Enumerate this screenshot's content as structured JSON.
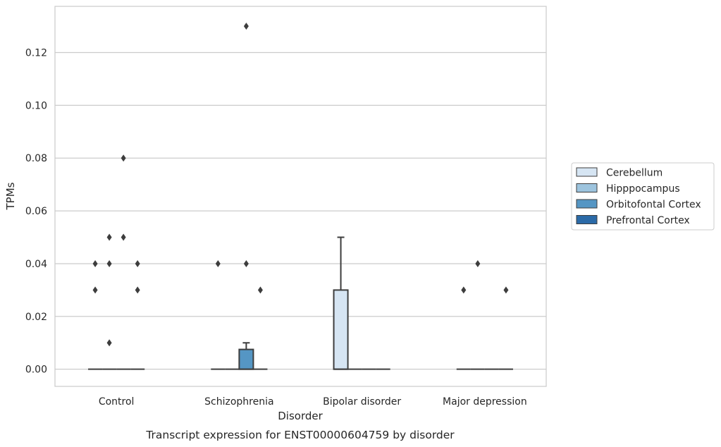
{
  "chart_data": {
    "type": "box",
    "title": "Transcript expression for ENST00000604759 by disorder",
    "xlabel": "Disorder",
    "ylabel": "TPMs",
    "ylim": [
      -0.0065,
      0.1375
    ],
    "yticks": [
      "0.00",
      "0.02",
      "0.04",
      "0.06",
      "0.08",
      "0.10",
      "0.12"
    ],
    "ytick_values": [
      0,
      0.02,
      0.04,
      0.06,
      0.08,
      0.1,
      0.12
    ],
    "grid": "horizontal",
    "legend_position": "right",
    "categories": [
      "Control",
      "Schizophrenia",
      "Bipolar disorder",
      "Major depression"
    ],
    "series": [
      {
        "name": "Cerebellum",
        "color": "#d6e5f3",
        "boxes": [
          {
            "q1": 0,
            "median": 0,
            "q3": 0,
            "whisker_low": 0,
            "whisker_high": 0,
            "outliers": [
              0.03,
              0.04
            ]
          },
          {
            "q1": 0,
            "median": 0,
            "q3": 0,
            "whisker_low": 0,
            "whisker_high": 0,
            "outliers": [
              0.04
            ]
          },
          {
            "q1": 0,
            "median": 0,
            "q3": 0.03,
            "whisker_low": 0,
            "whisker_high": 0.05,
            "outliers": []
          },
          {
            "q1": 0,
            "median": 0,
            "q3": 0,
            "whisker_low": 0,
            "whisker_high": 0,
            "outliers": [
              0.03
            ]
          }
        ]
      },
      {
        "name": "Hipppocampus",
        "color": "#9dc4de",
        "boxes": [
          {
            "q1": 0,
            "median": 0,
            "q3": 0,
            "whisker_low": 0,
            "whisker_high": 0,
            "outliers": [
              0.01,
              0.04,
              0.05
            ]
          },
          {
            "q1": 0,
            "median": 0,
            "q3": 0,
            "whisker_low": 0,
            "whisker_high": 0,
            "outliers": []
          },
          {
            "q1": 0,
            "median": 0,
            "q3": 0,
            "whisker_low": 0,
            "whisker_high": 0,
            "outliers": []
          },
          {
            "q1": 0,
            "median": 0,
            "q3": 0,
            "whisker_low": 0,
            "whisker_high": 0,
            "outliers": [
              0.04
            ]
          }
        ]
      },
      {
        "name": "Orbitofontal Cortex",
        "color": "#5596c4",
        "boxes": [
          {
            "q1": 0,
            "median": 0,
            "q3": 0,
            "whisker_low": 0,
            "whisker_high": 0,
            "outliers": [
              0.05,
              0.08
            ]
          },
          {
            "q1": 0,
            "median": 0,
            "q3": 0.0075,
            "whisker_low": 0,
            "whisker_high": 0.01,
            "outliers": [
              0.04,
              0.13
            ]
          },
          {
            "q1": 0,
            "median": 0,
            "q3": 0,
            "whisker_low": 0,
            "whisker_high": 0,
            "outliers": []
          },
          {
            "q1": 0,
            "median": 0,
            "q3": 0,
            "whisker_low": 0,
            "whisker_high": 0,
            "outliers": []
          }
        ]
      },
      {
        "name": "Prefrontal Cortex",
        "color": "#2b6aa7",
        "boxes": [
          {
            "q1": 0,
            "median": 0,
            "q3": 0,
            "whisker_low": 0,
            "whisker_high": 0,
            "outliers": [
              0.03,
              0.04
            ]
          },
          {
            "q1": 0,
            "median": 0,
            "q3": 0,
            "whisker_low": 0,
            "whisker_high": 0,
            "outliers": [
              0.03
            ]
          },
          {
            "q1": 0,
            "median": 0,
            "q3": 0,
            "whisker_low": 0,
            "whisker_high": 0,
            "outliers": []
          },
          {
            "q1": 0,
            "median": 0,
            "q3": 0,
            "whisker_low": 0,
            "whisker_high": 0,
            "outliers": [
              0.03
            ]
          }
        ]
      }
    ]
  }
}
